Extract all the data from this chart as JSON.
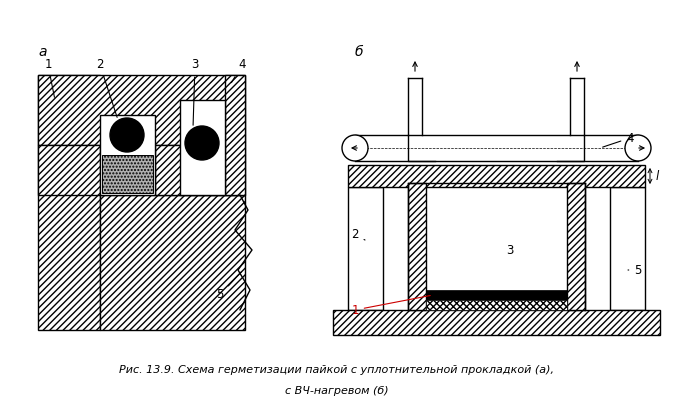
{
  "title_line1": "Рис. 13.9. Схема герметизации пайкой с уплотнительной прокладкой (а),",
  "title_line2": "с ВЧ-нагревом (б)",
  "label_a": "а",
  "label_b": "б",
  "bg_color": "#ffffff",
  "line_color": "#000000"
}
